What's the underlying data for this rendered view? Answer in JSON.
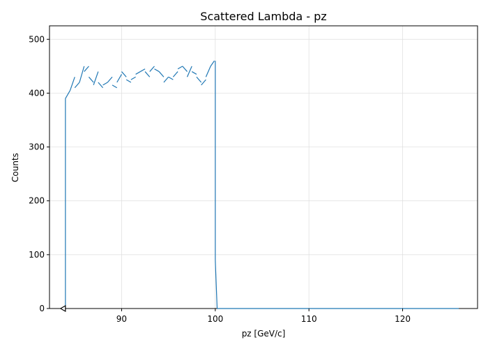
{
  "chart_data": {
    "type": "histogram",
    "title": "Scattered Lambda - pz",
    "xlabel": "pz [GeV/c]",
    "ylabel": "Counts",
    "xlim": [
      82.3,
      128.0
    ],
    "ylim": [
      0,
      525
    ],
    "xticks": [
      90,
      100,
      110,
      120
    ],
    "yticks": [
      0,
      100,
      200,
      300,
      400,
      500
    ],
    "grid": true,
    "color": "#1f77b4",
    "marker_color": "#000000",
    "bins": {
      "start": 84.0,
      "end": 126.0,
      "count": 420
    },
    "underflow_marker": {
      "x": 84.0,
      "y": 0,
      "shape": "left-triangle"
    },
    "plateau_region": {
      "x_start": 84.0,
      "x_end": 100.0,
      "segments": [
        {
          "x": [
            84.0,
            84.5
          ],
          "y": [
            390,
            405
          ]
        },
        {
          "x": [
            84.5,
            85.0
          ],
          "y": [
            405,
            430
          ]
        },
        {
          "x": [
            85.0,
            85.5
          ],
          "y": [
            410,
            420
          ]
        },
        {
          "x": [
            85.5,
            86.0
          ],
          "y": [
            420,
            450
          ]
        },
        {
          "x": [
            86.0,
            86.5
          ],
          "y": [
            440,
            450
          ]
        },
        {
          "x": [
            86.5,
            87.0
          ],
          "y": [
            430,
            420
          ]
        },
        {
          "x": [
            87.0,
            87.5
          ],
          "y": [
            415,
            440
          ]
        },
        {
          "x": [
            87.5,
            88.0
          ],
          "y": [
            420,
            410
          ]
        },
        {
          "x": [
            88.0,
            88.5
          ],
          "y": [
            415,
            420
          ]
        },
        {
          "x": [
            88.5,
            89.0
          ],
          "y": [
            420,
            430
          ]
        },
        {
          "x": [
            89.0,
            89.5
          ],
          "y": [
            415,
            410
          ]
        },
        {
          "x": [
            89.5,
            90.0
          ],
          "y": [
            420,
            435
          ]
        },
        {
          "x": [
            90.0,
            90.5
          ],
          "y": [
            440,
            430
          ]
        },
        {
          "x": [
            90.5,
            91.0
          ],
          "y": [
            425,
            420
          ]
        },
        {
          "x": [
            91.0,
            91.5
          ],
          "y": [
            425,
            430
          ]
        },
        {
          "x": [
            91.5,
            92.0
          ],
          "y": [
            435,
            440
          ]
        },
        {
          "x": [
            92.0,
            92.5
          ],
          "y": [
            440,
            445
          ]
        },
        {
          "x": [
            92.5,
            93.0
          ],
          "y": [
            440,
            430
          ]
        },
        {
          "x": [
            93.0,
            93.5
          ],
          "y": [
            440,
            450
          ]
        },
        {
          "x": [
            93.5,
            94.0
          ],
          "y": [
            445,
            440
          ]
        },
        {
          "x": [
            94.0,
            94.5
          ],
          "y": [
            440,
            430
          ]
        },
        {
          "x": [
            94.5,
            95.0
          ],
          "y": [
            420,
            430
          ]
        },
        {
          "x": [
            95.0,
            95.5
          ],
          "y": [
            430,
            425
          ]
        },
        {
          "x": [
            95.5,
            96.0
          ],
          "y": [
            430,
            440
          ]
        },
        {
          "x": [
            96.0,
            96.5
          ],
          "y": [
            445,
            450
          ]
        },
        {
          "x": [
            96.5,
            97.0
          ],
          "y": [
            450,
            440
          ]
        },
        {
          "x": [
            97.0,
            97.5
          ],
          "y": [
            430,
            450
          ]
        },
        {
          "x": [
            97.5,
            98.0
          ],
          "y": [
            440,
            435
          ]
        },
        {
          "x": [
            98.0,
            98.5
          ],
          "y": [
            430,
            420
          ]
        },
        {
          "x": [
            98.5,
            99.0
          ],
          "y": [
            415,
            425
          ]
        },
        {
          "x": [
            99.0,
            99.5
          ],
          "y": [
            430,
            450
          ]
        },
        {
          "x": [
            99.5,
            99.9
          ],
          "y": [
            450,
            460
          ]
        }
      ]
    },
    "edge_values": {
      "rise_at_84": [
        0,
        390
      ],
      "drop_at_100": [
        460,
        90
      ],
      "tail_start": 100.2,
      "tail_value": 0
    }
  }
}
